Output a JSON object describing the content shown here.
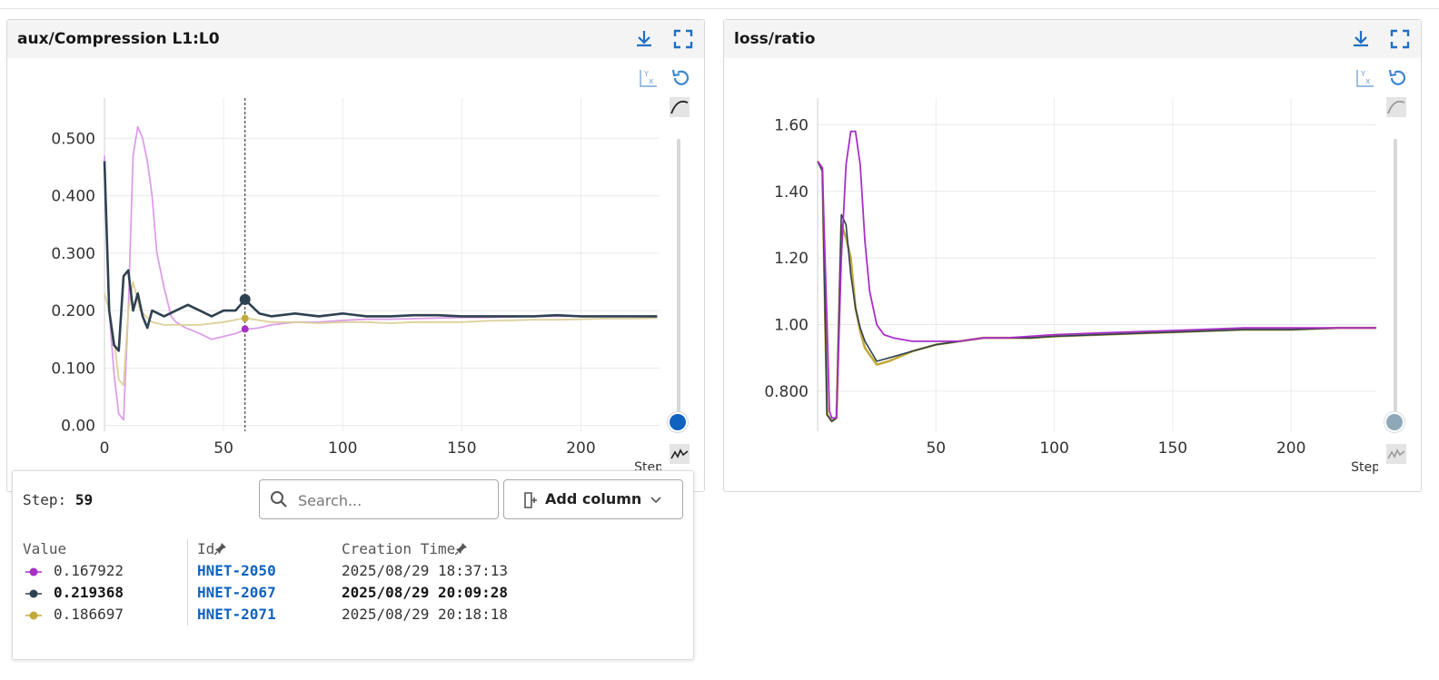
{
  "colors": {
    "hnet2050": "#a82fc7",
    "hnet2050_light": "#dc9ee8",
    "hnet2067": "#2f4151",
    "hnet2071": "#c2aa3a",
    "hnet2071_light": "#ddd09a",
    "accent": "#1f6fc4"
  },
  "panels": [
    {
      "title": "aux/Compression L1:L0",
      "download_icon": "download-icon",
      "fullscreen_icon": "fullscreen-icon"
    },
    {
      "title": "loss/ratio",
      "download_icon": "download-icon",
      "fullscreen_icon": "fullscreen-icon"
    }
  ],
  "chart_data": [
    {
      "type": "line",
      "title": "aux/Compression L1:L0",
      "xlabel": "Step",
      "ylabel": "",
      "xlim": [
        0,
        233
      ],
      "ylim": [
        -0.01,
        0.57
      ],
      "xticks": [
        "0",
        "50",
        "100",
        "150",
        "200"
      ],
      "yticks": [
        "0.00",
        "0.100",
        "0.200",
        "0.300",
        "0.400",
        "0.500"
      ],
      "yticks_values": [
        0,
        0.1,
        0.2,
        0.3,
        0.4,
        0.5
      ],
      "xticks_values": [
        0,
        50,
        100,
        150,
        200
      ],
      "grid": true,
      "hover_step": 59,
      "series": [
        {
          "name": "HNET-2050",
          "color": "#dc9ee8",
          "marker_color": "#a82fc7",
          "width": 1.8,
          "hover_value": 0.167922,
          "x": [
            0,
            2,
            4,
            6,
            8,
            10,
            12,
            14,
            16,
            18,
            20,
            22,
            25,
            28,
            30,
            34,
            40,
            45,
            50,
            55,
            59,
            65,
            70,
            80,
            90,
            100,
            110,
            120,
            130,
            140,
            150,
            160,
            170,
            180,
            190,
            200,
            210,
            220,
            232
          ],
          "y": [
            0.47,
            0.2,
            0.09,
            0.02,
            0.01,
            0.2,
            0.47,
            0.52,
            0.5,
            0.46,
            0.4,
            0.3,
            0.24,
            0.19,
            0.18,
            0.17,
            0.16,
            0.15,
            0.155,
            0.16,
            0.167,
            0.17,
            0.175,
            0.18,
            0.18,
            0.183,
            0.185,
            0.185,
            0.186,
            0.187,
            0.188,
            0.188,
            0.189,
            0.19,
            0.19,
            0.19,
            0.19,
            0.19,
            0.19
          ]
        },
        {
          "name": "HNET-2071",
          "color": "#ddd09a",
          "marker_color": "#c2aa3a",
          "width": 1.8,
          "hover_value": 0.186697,
          "x": [
            0,
            2,
            4,
            6,
            8,
            10,
            12,
            15,
            20,
            25,
            30,
            40,
            50,
            59,
            70,
            80,
            90,
            100,
            110,
            120,
            130,
            140,
            150,
            160,
            170,
            180,
            190,
            200,
            210,
            220,
            232
          ],
          "y": [
            0.23,
            0.2,
            0.15,
            0.08,
            0.07,
            0.2,
            0.25,
            0.2,
            0.18,
            0.175,
            0.175,
            0.175,
            0.18,
            0.187,
            0.18,
            0.18,
            0.178,
            0.18,
            0.18,
            0.178,
            0.18,
            0.18,
            0.18,
            0.182,
            0.183,
            0.184,
            0.184,
            0.185,
            0.186,
            0.186,
            0.187
          ]
        },
        {
          "name": "HNET-2067",
          "color": "#2f4151",
          "marker_color": "#2f4151",
          "width": 2.6,
          "hover_value": 0.219368,
          "x": [
            0,
            2,
            4,
            6,
            8,
            10,
            12,
            14,
            16,
            18,
            20,
            25,
            30,
            35,
            40,
            45,
            50,
            55,
            59,
            65,
            70,
            80,
            90,
            100,
            110,
            120,
            130,
            140,
            150,
            160,
            170,
            180,
            190,
            200,
            210,
            220,
            232
          ],
          "y": [
            0.46,
            0.2,
            0.14,
            0.13,
            0.26,
            0.27,
            0.2,
            0.23,
            0.19,
            0.17,
            0.2,
            0.19,
            0.2,
            0.21,
            0.2,
            0.19,
            0.2,
            0.2,
            0.219,
            0.195,
            0.19,
            0.195,
            0.19,
            0.195,
            0.19,
            0.19,
            0.192,
            0.192,
            0.19,
            0.19,
            0.19,
            0.19,
            0.192,
            0.19,
            0.19,
            0.19,
            0.19
          ]
        }
      ]
    },
    {
      "type": "line",
      "title": "loss/ratio",
      "xlabel": "Step",
      "ylabel": "",
      "xlim": [
        0,
        236
      ],
      "ylim": [
        0.68,
        1.68
      ],
      "xticks": [
        "50",
        "100",
        "150",
        "200"
      ],
      "yticks": [
        "0.800",
        "1.00",
        "1.20",
        "1.40",
        "1.60"
      ],
      "yticks_values": [
        0.8,
        1.0,
        1.2,
        1.4,
        1.6
      ],
      "xticks_values": [
        50,
        100,
        150,
        200
      ],
      "grid": true,
      "series": [
        {
          "name": "HNET-2071",
          "color": "#c2aa3a",
          "width": 2.6,
          "x": [
            0,
            2,
            4,
            6,
            8,
            10,
            12,
            14,
            16,
            18,
            20,
            25,
            30,
            40,
            50,
            60,
            70,
            80,
            90,
            100,
            120,
            140,
            160,
            180,
            200,
            220,
            236
          ],
          "y": [
            1.49,
            1.47,
            0.73,
            0.71,
            0.72,
            1.3,
            1.26,
            1.2,
            1.05,
            0.98,
            0.93,
            0.88,
            0.89,
            0.92,
            0.94,
            0.95,
            0.96,
            0.96,
            0.96,
            0.965,
            0.97,
            0.975,
            0.98,
            0.985,
            0.985,
            0.99,
            0.99
          ]
        },
        {
          "name": "HNET-2067",
          "color": "#2f4151",
          "width": 1.6,
          "x": [
            0,
            2,
            4,
            6,
            8,
            10,
            12,
            14,
            16,
            18,
            20,
            25,
            30,
            40,
            50,
            60,
            70,
            80,
            90,
            100,
            120,
            140,
            160,
            180,
            200,
            220,
            236
          ],
          "y": [
            1.49,
            1.46,
            0.73,
            0.71,
            0.72,
            1.33,
            1.3,
            1.15,
            1.05,
            0.99,
            0.95,
            0.89,
            0.9,
            0.92,
            0.94,
            0.95,
            0.96,
            0.96,
            0.96,
            0.965,
            0.97,
            0.975,
            0.98,
            0.985,
            0.985,
            0.99,
            0.99
          ]
        },
        {
          "name": "HNET-2050",
          "color": "#a82fc7",
          "width": 1.8,
          "x": [
            0,
            2,
            4,
            5,
            6,
            8,
            10,
            12,
            14,
            16,
            18,
            20,
            22,
            25,
            28,
            32,
            40,
            50,
            60,
            70,
            80,
            100,
            120,
            140,
            160,
            180,
            200,
            220,
            236
          ],
          "y": [
            1.49,
            1.47,
            1.0,
            0.74,
            0.72,
            0.72,
            1.2,
            1.48,
            1.58,
            1.58,
            1.48,
            1.25,
            1.1,
            1.0,
            0.97,
            0.96,
            0.95,
            0.95,
            0.95,
            0.96,
            0.96,
            0.97,
            0.975,
            0.98,
            0.985,
            0.99,
            0.99,
            0.99,
            0.99
          ]
        }
      ]
    }
  ],
  "legend": {
    "step_label": "Step:",
    "step_value": "59",
    "search_placeholder": "Search...",
    "add_column_label": "Add column",
    "columns": {
      "value": "Value",
      "id": "Id",
      "creation_time": "Creation Time"
    },
    "rows": [
      {
        "value": "0.167922",
        "id": "HNET-2050",
        "creation_time": "2025/08/29 18:37:13",
        "color": "#a82fc7",
        "bold": false
      },
      {
        "value": "0.219368",
        "id": "HNET-2067",
        "creation_time": "2025/08/29 20:09:28",
        "color": "#2f4151",
        "bold": true
      },
      {
        "value": "0.186697",
        "id": "HNET-2071",
        "creation_time": "2025/08/29 20:18:18",
        "color": "#c2aa3a",
        "bold": false
      }
    ]
  }
}
